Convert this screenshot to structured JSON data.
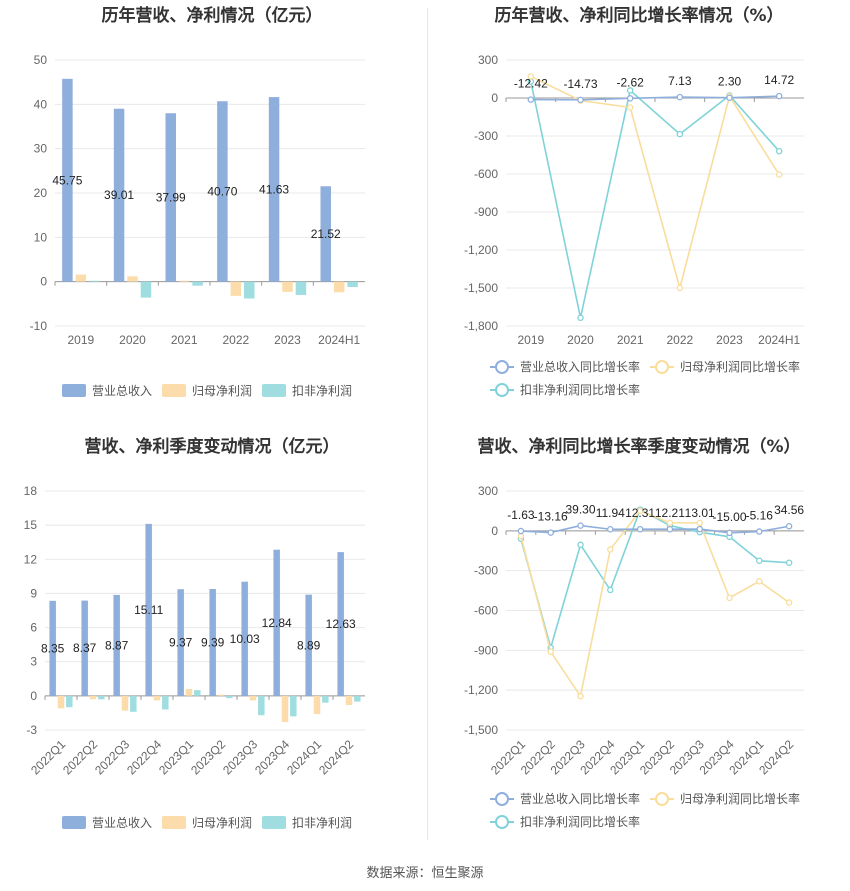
{
  "source_label": "数据来源：恒生聚源",
  "colors": {
    "revenue": "#8eaedc",
    "parent_np": "#fbdcaa",
    "deducted_np": "#9fdde0",
    "revenue_line": "#8eaedc",
    "parent_line": "#f9dd9c",
    "deducted_line": "#7fd3d8",
    "grid": "#e8e8e8",
    "axis": "#999999"
  },
  "chart_data": [
    {
      "id": "annual-values",
      "type": "bar",
      "title": "历年营收、净利情况（亿元）",
      "categories": [
        "2019",
        "2020",
        "2021",
        "2022",
        "2023",
        "2024H1"
      ],
      "ylim": [
        -10,
        50
      ],
      "yticks": [
        50,
        40,
        30,
        20,
        10,
        0,
        -10
      ],
      "series": [
        {
          "name": "营业总收入",
          "values": [
            45.75,
            39.01,
            37.99,
            40.7,
            41.63,
            21.52
          ],
          "labels": [
            "45.75",
            "39.01",
            "37.99",
            "40.70",
            "41.63",
            "21.52"
          ]
        },
        {
          "name": "归母净利润",
          "values": [
            1.6,
            1.2,
            0.2,
            -3.2,
            -2.3,
            -2.4
          ]
        },
        {
          "name": "扣非净利润",
          "values": [
            0.2,
            -3.6,
            -0.9,
            -3.8,
            -3.0,
            -1.2
          ]
        }
      ],
      "legend": "bottom",
      "grid": true
    },
    {
      "id": "annual-growth",
      "type": "line",
      "title": "历年营收、净利同比增长率情况（%）",
      "categories": [
        "2019",
        "2020",
        "2021",
        "2022",
        "2023",
        "2024H1"
      ],
      "ylim": [
        -1800,
        300
      ],
      "yticks": [
        300,
        0,
        -300,
        -600,
        -900,
        -1200,
        -1500,
        -1800
      ],
      "ytick_labels": [
        "300",
        "0",
        "-300",
        "-600",
        "-900",
        "-1,200",
        "-1,500",
        "-1,800"
      ],
      "series": [
        {
          "name": "营业总收入同比增长率",
          "values": [
            -12.42,
            -14.73,
            -2.62,
            7.13,
            2.3,
            14.72
          ],
          "labels": [
            "-12.42",
            "-14.73",
            "-2.62",
            "7.13",
            "2.30",
            "14.72"
          ]
        },
        {
          "name": "归母净利润同比增长率",
          "values": [
            170,
            -20,
            -75,
            -1500,
            15,
            -605
          ]
        },
        {
          "name": "扣非净利润同比增长率",
          "values": [
            130,
            -1735,
            60,
            -285,
            20,
            -420
          ]
        }
      ],
      "legend": "bottom",
      "grid": true
    },
    {
      "id": "quarterly-values",
      "type": "bar",
      "title": "营收、净利季度变动情况（亿元）",
      "categories": [
        "2022Q1",
        "2022Q2",
        "2022Q3",
        "2022Q4",
        "2023Q1",
        "2023Q2",
        "2023Q3",
        "2023Q4",
        "2024Q1",
        "2024Q2"
      ],
      "ylim": [
        -3,
        18
      ],
      "yticks": [
        18,
        15,
        12,
        9,
        6,
        3,
        0,
        -3
      ],
      "series": [
        {
          "name": "营业总收入",
          "values": [
            8.35,
            8.37,
            8.87,
            15.11,
            9.37,
            9.39,
            10.03,
            12.84,
            8.89,
            12.63
          ],
          "labels": [
            "8.35",
            "8.37",
            "8.87",
            "15.11",
            "9.37",
            "9.39",
            "10.03",
            "12.84",
            "8.89",
            "12.63"
          ]
        },
        {
          "name": "归母净利润",
          "values": [
            -1.1,
            -0.3,
            -1.3,
            -0.4,
            0.6,
            0.1,
            -0.4,
            -2.3,
            -1.6,
            -0.8
          ]
        },
        {
          "name": "扣非净利润",
          "values": [
            -1.0,
            -0.3,
            -1.4,
            -1.2,
            0.5,
            -0.2,
            -1.7,
            -1.8,
            -0.6,
            -0.5
          ]
        }
      ],
      "legend": "bottom",
      "grid": true
    },
    {
      "id": "quarterly-growth",
      "type": "line",
      "title": "营收、净利同比增长率季度变动情况（%）",
      "categories": [
        "2022Q1",
        "2022Q2",
        "2022Q3",
        "2022Q4",
        "2023Q1",
        "2023Q2",
        "2023Q3",
        "2023Q4",
        "2024Q1",
        "2024Q2"
      ],
      "ylim": [
        -1500,
        300
      ],
      "yticks": [
        300,
        0,
        -300,
        -600,
        -900,
        -1200,
        -1500
      ],
      "ytick_labels": [
        "300",
        "0",
        "-300",
        "-600",
        "-900",
        "-1,200",
        "-1,500"
      ],
      "series": [
        {
          "name": "营业总收入同比增长率",
          "values": [
            -1.63,
            -13.16,
            39.3,
            11.94,
            12.31,
            12.21,
            13.01,
            -15.0,
            -5.16,
            34.56
          ],
          "labels": [
            "-1.63",
            "-13.16",
            "39.30",
            "11.94",
            "12.31",
            "12.21",
            "13.01",
            "-15.00",
            "-5.16",
            "34.56"
          ]
        },
        {
          "name": "归母净利润同比增长率",
          "values": [
            -40,
            -910,
            -1245,
            -140,
            150,
            60,
            60,
            -505,
            -380,
            -540
          ]
        },
        {
          "name": "扣非净利润同比增长率",
          "values": [
            -60,
            -880,
            -105,
            -445,
            160,
            40,
            -10,
            -45,
            -225,
            -240
          ]
        }
      ],
      "legend": "bottom",
      "grid": true
    }
  ]
}
